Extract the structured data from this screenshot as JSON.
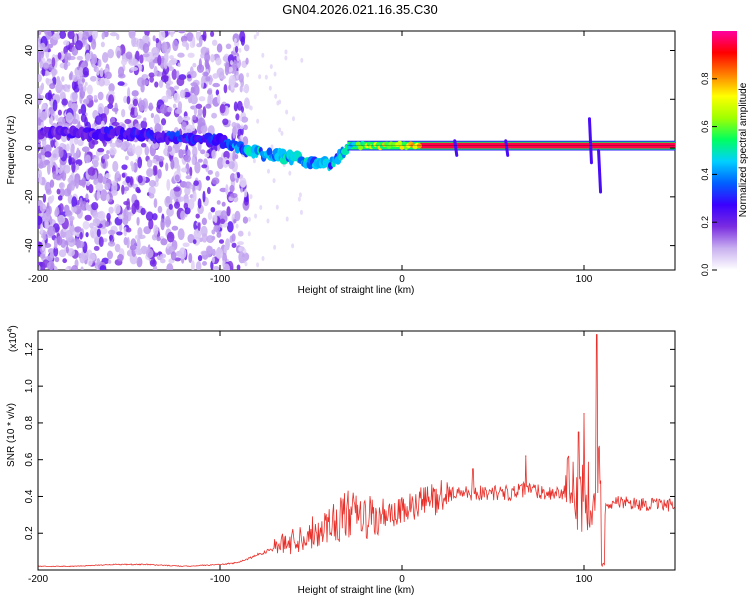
{
  "title": "GN04.2026.021.16.35.C30",
  "chart_data": [
    {
      "type": "heatmap",
      "name": "spectrogram",
      "xlabel": "Height of straight line (km)",
      "ylabel": "Frequency (Hz)",
      "xlim": [
        -200,
        150
      ],
      "ylim": [
        -50,
        48
      ],
      "x_ticks": [
        -200,
        -100,
        0,
        100
      ],
      "x_tick_labels": [
        "-200",
        "-100",
        "0",
        "100"
      ],
      "y_ticks": [
        -40,
        -20,
        0,
        20,
        40
      ],
      "y_tick_labels": [
        "-40",
        "-20",
        "0",
        "20",
        "40"
      ],
      "colorbar": {
        "label": "Normalized spectral amplitude",
        "range": [
          0,
          1
        ],
        "ticks": [
          0,
          0.2,
          0.4,
          0.6,
          0.8
        ],
        "tick_labels": [
          "0.0",
          "0.2",
          "0.4",
          "0.6",
          "0.8"
        ],
        "colors": [
          "#ffffff",
          "#c9b0f0",
          "#7a2ce0",
          "#3a00ff",
          "#0060ff",
          "#00d0ff",
          "#00ff60",
          "#a0ff00",
          "#ffff00",
          "#ff8000",
          "#ff0000",
          "#ff00a0"
        ]
      },
      "ridge": {
        "x": [
          -200,
          -160,
          -120,
          -100,
          -80,
          -60,
          -40,
          -30,
          -20,
          0,
          20,
          40,
          60,
          80,
          100,
          110,
          150
        ],
        "freq": [
          6,
          6,
          4,
          3,
          -2,
          -4,
          -7,
          0,
          1,
          1,
          1,
          1,
          1,
          1,
          1,
          1,
          1
        ],
        "amplitude": [
          0.2,
          0.25,
          0.3,
          0.3,
          0.45,
          0.45,
          0.4,
          0.45,
          0.6,
          0.7,
          0.85,
          0.85,
          0.85,
          0.85,
          0.85,
          0.9,
          0.9
        ]
      }
    },
    {
      "type": "line",
      "name": "snr",
      "xlabel": "Height of straight line (km)",
      "ylabel": "SNR (10 * v/v)",
      "scale_label": "(x10",
      "scale_exponent": "4",
      "scale_close": ")",
      "xlim": [
        -200,
        150
      ],
      "ylim": [
        0,
        1.3
      ],
      "x_ticks": [
        -200,
        -100,
        0,
        100
      ],
      "x_tick_labels": [
        "-200",
        "-100",
        "0",
        "100"
      ],
      "y_ticks": [
        0.2,
        0.4,
        0.6,
        0.8,
        1.0,
        1.2
      ],
      "y_tick_labels": [
        "0.2",
        "0.4",
        "0.6",
        "0.8",
        "1.0",
        "1.2"
      ],
      "color": "#e8302a",
      "x": [
        -200,
        -180,
        -160,
        -140,
        -120,
        -100,
        -90,
        -80,
        -70,
        -60,
        -50,
        -40,
        -30,
        -20,
        -10,
        0,
        10,
        20,
        30,
        40,
        50,
        60,
        70,
        80,
        90,
        100,
        105,
        108,
        110,
        115,
        130,
        150
      ],
      "y": [
        0.02,
        0.02,
        0.03,
        0.03,
        0.02,
        0.03,
        0.04,
        0.08,
        0.12,
        0.16,
        0.2,
        0.25,
        0.3,
        0.28,
        0.28,
        0.32,
        0.36,
        0.4,
        0.42,
        0.42,
        0.42,
        0.42,
        0.44,
        0.42,
        0.42,
        0.4,
        0.45,
        0.5,
        0.36,
        0.37,
        0.36,
        0.35
      ],
      "peaks": [
        {
          "x": 39,
          "y": 0.55
        },
        {
          "x": 68,
          "y": 0.62
        },
        {
          "x": 97,
          "y": 0.75
        },
        {
          "x": 100,
          "y": 0.85
        },
        {
          "x": 107,
          "y": 1.28
        }
      ]
    }
  ]
}
